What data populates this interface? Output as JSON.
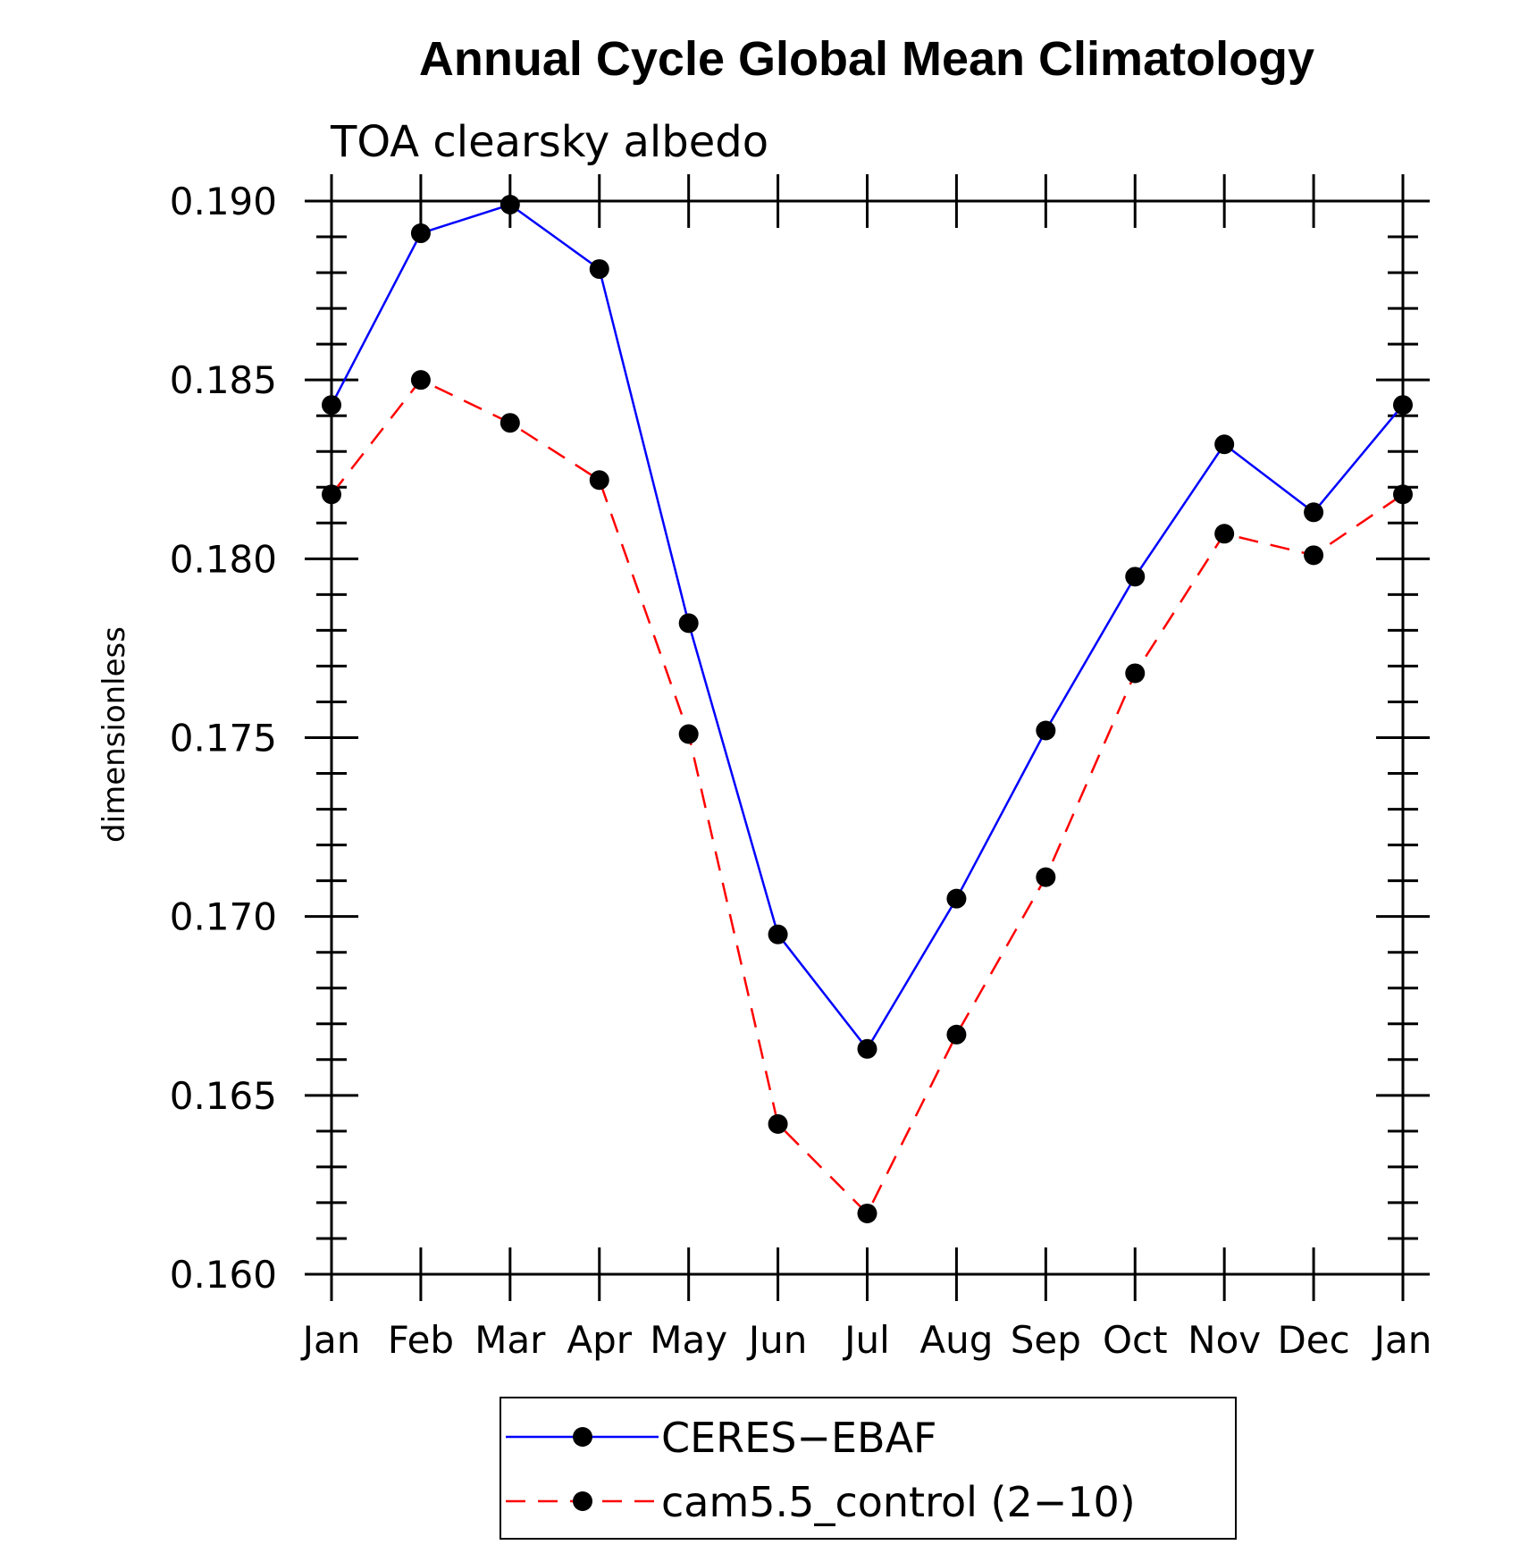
{
  "chart_data": {
    "type": "line",
    "title": "Annual Cycle Global Mean Climatology",
    "subtitle": "TOA clearsky albedo",
    "xlabel": "",
    "ylabel": "dimensionless",
    "categories": [
      "Jan",
      "Feb",
      "Mar",
      "Apr",
      "May",
      "Jun",
      "Jul",
      "Aug",
      "Sep",
      "Oct",
      "Nov",
      "Dec",
      "Jan"
    ],
    "ylim": [
      0.16,
      0.19
    ],
    "yticks": [
      "0.160",
      "0.165",
      "0.170",
      "0.175",
      "0.180",
      "0.185",
      "0.190"
    ],
    "grid": false,
    "legend_position": "bottom-center",
    "series": [
      {
        "name": "CERES−EBAF",
        "color": "#0000ff",
        "dash": "solid",
        "marker": "filled-circle",
        "values": [
          0.1843,
          0.1891,
          0.1899,
          0.1881,
          0.1782,
          0.1695,
          0.1663,
          0.1705,
          0.1752,
          0.1795,
          0.1832,
          0.1813,
          0.1843
        ]
      },
      {
        "name": "cam5.5_control (2−10)",
        "color": "#ff0000",
        "dash": "dashed",
        "marker": "filled-circle",
        "values": [
          0.1818,
          0.185,
          0.1838,
          0.1822,
          0.1751,
          0.1642,
          0.1617,
          0.1667,
          0.1711,
          0.1768,
          0.1807,
          0.1801,
          0.1818
        ]
      }
    ]
  }
}
